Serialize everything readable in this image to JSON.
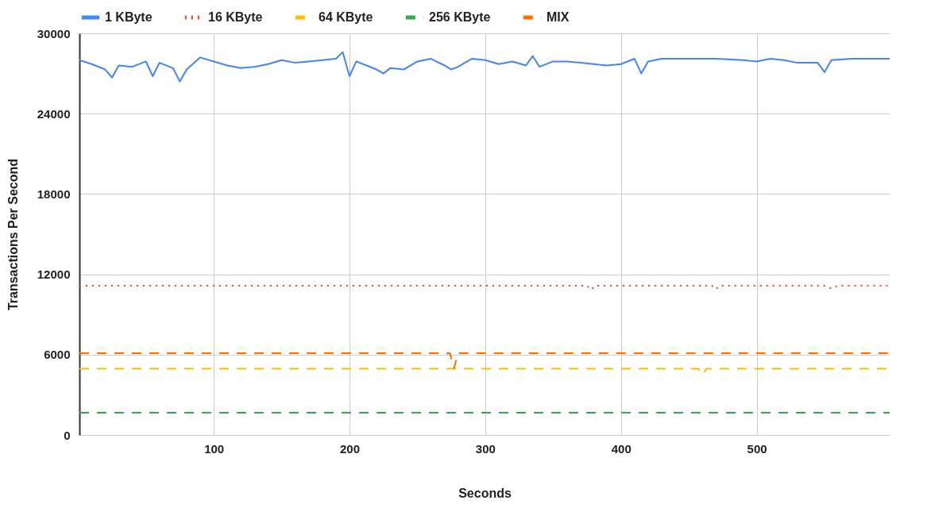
{
  "chart_data": {
    "type": "line",
    "xlabel": "Seconds",
    "ylabel": "Transactions Per Second",
    "xlim": [
      1,
      598
    ],
    "ylim": [
      0,
      30000
    ],
    "xticks": [
      100,
      200,
      300,
      400,
      500
    ],
    "yticks": [
      0,
      6000,
      12000,
      18000,
      24000,
      30000
    ],
    "grid": true,
    "legend": "top",
    "series": [
      {
        "name": "1 KByte",
        "color": "#4285f4",
        "line_style": "solid",
        "x": [
          1,
          10,
          20,
          25,
          30,
          40,
          50,
          55,
          60,
          70,
          75,
          80,
          90,
          100,
          110,
          120,
          130,
          140,
          150,
          160,
          170,
          180,
          190,
          195,
          200,
          205,
          210,
          220,
          225,
          230,
          240,
          250,
          260,
          270,
          275,
          280,
          290,
          300,
          310,
          320,
          330,
          335,
          340,
          350,
          360,
          370,
          380,
          390,
          400,
          410,
          415,
          420,
          430,
          450,
          470,
          490,
          500,
          510,
          520,
          530,
          545,
          550,
          555,
          570,
          598
        ],
        "values": [
          28000,
          27700,
          27300,
          26700,
          27600,
          27500,
          27900,
          26800,
          27800,
          27400,
          26400,
          27300,
          28200,
          27900,
          27600,
          27400,
          27500,
          27700,
          28000,
          27800,
          27900,
          28000,
          28100,
          28600,
          26800,
          27900,
          27700,
          27300,
          27000,
          27400,
          27300,
          27900,
          28100,
          27600,
          27300,
          27500,
          28100,
          28000,
          27700,
          27900,
          27600,
          28300,
          27500,
          27900,
          27900,
          27800,
          27700,
          27600,
          27700,
          28100,
          27000,
          27900,
          28100,
          28100,
          28100,
          28000,
          27900,
          28100,
          28000,
          27800,
          27800,
          27100,
          28000,
          28100,
          28100
        ]
      },
      {
        "name": "16 KByte",
        "color": "#ea4335",
        "line_style": "dotted",
        "x": [
          1,
          100,
          200,
          300,
          375,
          378,
          381,
          400,
          467,
          470,
          473,
          550,
          555,
          560,
          598
        ],
        "values": [
          11150,
          11150,
          11150,
          11150,
          11150,
          10850,
          11150,
          11150,
          11150,
          10900,
          11150,
          11150,
          10950,
          11150,
          11150
        ]
      },
      {
        "name": "64 KByte",
        "color": "#fbbc04",
        "line_style": "dashed",
        "x": [
          1,
          100,
          200,
          300,
          400,
          457,
          460,
          463,
          500,
          598
        ],
        "values": [
          4950,
          4950,
          4950,
          4950,
          4950,
          4950,
          4500,
          4950,
          4950,
          4950
        ]
      },
      {
        "name": "256 KByte",
        "color": "#34a853",
        "line_style": "dashed",
        "x": [
          1,
          598
        ],
        "values": [
          1660,
          1660
        ]
      },
      {
        "name": "MIX",
        "color": "#ff6d01",
        "line_style": "dashed",
        "x": [
          1,
          100,
          200,
          274,
          277,
          280,
          300,
          400,
          500,
          598
        ],
        "values": [
          6100,
          6100,
          6100,
          6100,
          5000,
          6100,
          6100,
          6100,
          6100,
          6100
        ]
      }
    ]
  }
}
